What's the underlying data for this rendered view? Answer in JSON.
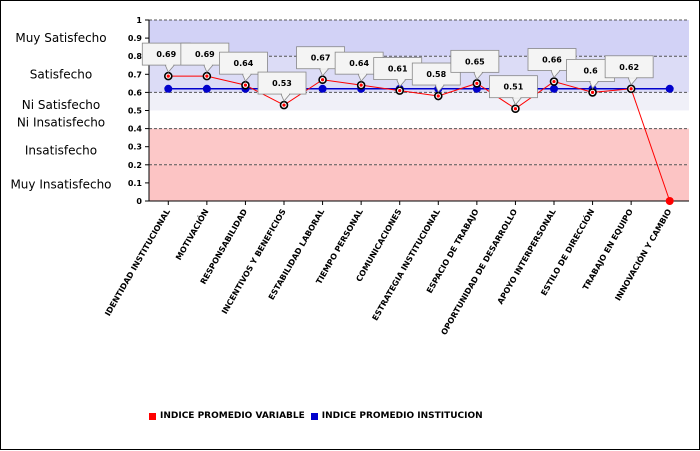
{
  "chart_data": {
    "type": "line",
    "categories": [
      "IDENTIDAD INSTITUCIONAL",
      "MOTIVACIÓN",
      "RESPONSABILIDAD",
      "INCENTIVOS Y BENEFICIOS",
      "ESTABILIDAD LABORAL",
      "TIEMPO PERSONAL",
      "COMUNICACIONES",
      "ESTRATEGIA INSTITUCIONAL",
      "ESPACIO DE TRABAJO",
      "OPORTUNIDAD DE DESARROLLO",
      "APOYO INTERPERSONAL",
      "ESTILO DE DIRECCIÓN",
      "TRABAJO EN EQUIPO",
      "INNOVACIÓN Y CAMBIO"
    ],
    "series": [
      {
        "name": "INDICE PROMEDIO VARIABLE",
        "color": "#ff0000",
        "values": [
          0.69,
          0.69,
          0.64,
          0.53,
          0.67,
          0.64,
          0.61,
          0.58,
          0.65,
          0.51,
          0.66,
          0.6,
          0.62,
          0
        ],
        "labels": [
          "0.69",
          "0.69",
          "0.64",
          "0.53",
          "0.67",
          "0.64",
          "0.61",
          "0.58",
          "0.65",
          "0.51",
          "0.66",
          "0.6",
          "0.62",
          ""
        ]
      },
      {
        "name": "INDICE PROMEDIO INSTITUCION",
        "color": "#0000cc",
        "values": [
          0.62,
          0.62,
          0.62,
          0.62,
          0.62,
          0.62,
          0.62,
          0.62,
          0.62,
          0.62,
          0.62,
          0.62,
          0.62,
          0.62
        ]
      }
    ],
    "yticks": [
      "0",
      "0.1",
      "0.2",
      "0.3",
      "0.4",
      "0.5",
      "0.6",
      "0.7",
      "0.8",
      "0.9",
      "1"
    ],
    "ylim": [
      0,
      1
    ],
    "bands": [
      {
        "label": "Muy Satisfecho",
        "from": 0.8,
        "to": 1.0,
        "color": "#d2d2f6"
      },
      {
        "label": "Satisfecho",
        "from": 0.6,
        "to": 0.8,
        "color": "#dcdcf6"
      },
      {
        "label": "Ni Satisfecho",
        "from": 0.5,
        "to": 0.6,
        "color": "#f0f0f8"
      },
      {
        "label": "Ni Insatisfecho",
        "from": 0.4,
        "to": 0.5,
        "color": "#ffffff"
      },
      {
        "label": "Insatisfecho",
        "from": 0.2,
        "to": 0.4,
        "color": "#fcc8c8"
      },
      {
        "label": "Muy Insatisfecho",
        "from": 0.0,
        "to": 0.2,
        "color": "#fcc4c4"
      }
    ],
    "band_labels": [
      {
        "text": "Muy Satisfecho",
        "at": 0.9
      },
      {
        "text": "Satisfecho",
        "at": 0.7
      },
      {
        "text": "Ni Satisfecho",
        "at": 0.53
      },
      {
        "text": "Ni Insatisfecho",
        "at": 0.435
      },
      {
        "text": "Insatisfecho",
        "at": 0.28
      },
      {
        "text": "Muy Insatisfecho",
        "at": 0.09
      }
    ],
    "grid": "dashed lines at 0.2, 0.4, 0.6, 0.8, 1.0",
    "legend_position": "bottom-left"
  }
}
